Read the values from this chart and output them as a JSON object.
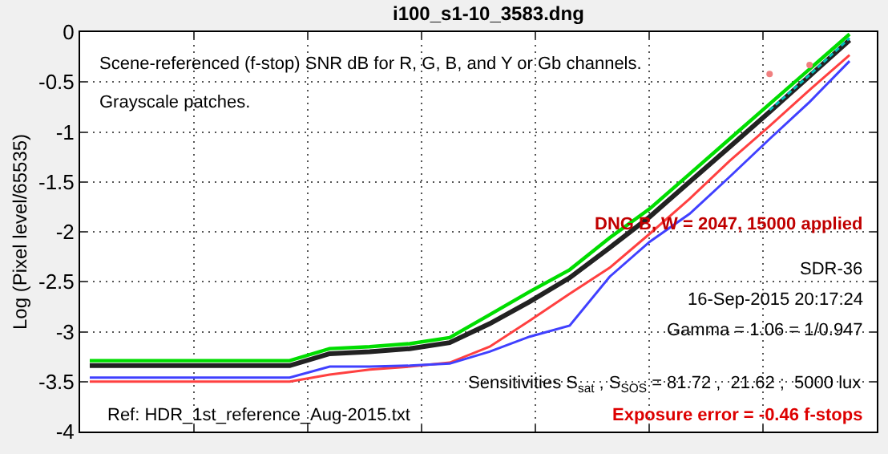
{
  "chart_data": {
    "type": "line",
    "title": "i100_s1-10_3583.dng",
    "ylabel": "Log (Pixel level/65535)",
    "categories": [
      null,
      null,
      null,
      null,
      null,
      null,
      null,
      null,
      null,
      null,
      null,
      null,
      null,
      null,
      null,
      null,
      null,
      null,
      null,
      null
    ],
    "series": [
      {
        "color": "#ff4040",
        "values": [
          -3.5,
          -3.5,
          -3.5,
          -3.5,
          -3.5,
          -3.5,
          -3.43,
          -3.38,
          -3.35,
          -3.31,
          -3.15,
          -2.89,
          -2.62,
          -2.36,
          -2.02,
          -1.67,
          -1.29,
          -0.94,
          -0.58,
          -0.23
        ]
      },
      {
        "color": "#4040ff",
        "values": [
          -3.46,
          -3.46,
          -3.46,
          -3.46,
          -3.46,
          -3.46,
          -3.35,
          -3.35,
          -3.34,
          -3.32,
          -3.2,
          -3.05,
          -2.94,
          -2.45,
          -2.1,
          -1.82,
          -1.45,
          -1.07,
          -0.7,
          -0.29
        ]
      },
      {
        "color": "#00dd00",
        "values": [
          -3.29,
          -3.29,
          -3.29,
          -3.29,
          -3.29,
          -3.29,
          -3.17,
          -3.15,
          -3.12,
          -3.06,
          -2.83,
          -2.6,
          -2.38,
          -2.06,
          -1.77,
          -1.42,
          -1.07,
          -0.72,
          -0.37,
          -0.02
        ]
      },
      {
        "color": "#222222",
        "values": [
          -3.34,
          -3.34,
          -3.34,
          -3.34,
          -3.34,
          -3.34,
          -3.22,
          -3.2,
          -3.17,
          -3.11,
          -2.92,
          -2.7,
          -2.46,
          -2.16,
          -1.85,
          -1.5,
          -1.15,
          -0.8,
          -0.44,
          -0.08
        ]
      },
      {
        "color": "#00bbbb",
        "line_style": "dashed",
        "values": [
          null,
          null,
          null,
          null,
          null,
          null,
          null,
          null,
          null,
          null,
          null,
          null,
          null,
          null,
          null,
          null,
          null,
          -0.78,
          -0.43,
          -0.06
        ]
      },
      {
        "type": "scatter",
        "marker": "circle",
        "color": "#f08080",
        "values": [
          null,
          null,
          null,
          null,
          null,
          null,
          null,
          null,
          null,
          null,
          null,
          null,
          null,
          null,
          null,
          null,
          null,
          -0.42,
          -0.33,
          null
        ]
      }
    ],
    "ylim": [
      -4,
      0
    ],
    "yticks": [
      0,
      -0.5,
      -1,
      -1.5,
      -2,
      -2.5,
      -3,
      -3.5,
      -4
    ],
    "grid": true,
    "tick_labels": "y",
    "marker": "none",
    "line_style": "solid",
    "annotations": [
      "Scene-referenced (f-stop) SNR dB for R, G, B, and Y or Gb channels.",
      "Grayscale patches.",
      "DNG B, W = 2047, 15000 applied",
      "SDR-36",
      "16-Sep-2015 20:17:24",
      "Gamma = 1.06 = 1/0.947",
      "Sensitivities S$_{sat}$ , S$_{SOS}$ = 81.72 ,  21.62 ;  5000 lux",
      "Ref: HDR_1st_reference_Aug-2015.txt",
      "Exposure error = -0.46 f-stops"
    ]
  }
}
